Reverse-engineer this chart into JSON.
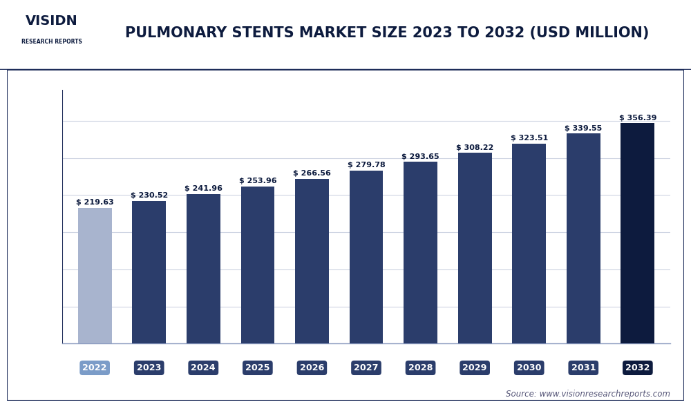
{
  "title": "PULMONARY STENTS MARKET SIZE 2023 TO 2032 (USD MILLION)",
  "categories": [
    "2022",
    "2023",
    "2024",
    "2025",
    "2026",
    "2027",
    "2028",
    "2029",
    "2030",
    "2031",
    "2032"
  ],
  "values": [
    219.63,
    230.52,
    241.96,
    253.96,
    266.56,
    279.78,
    293.65,
    308.22,
    323.51,
    339.55,
    356.39
  ],
  "bar_colors": [
    "#a8b4ce",
    "#2b3d6b",
    "#2b3d6b",
    "#2b3d6b",
    "#2b3d6b",
    "#2b3d6b",
    "#2b3d6b",
    "#2b3d6b",
    "#2b3d6b",
    "#2b3d6b",
    "#0d1b3e"
  ],
  "tick_label_bg_colors": [
    "#7b9cc8",
    "#2b3d6b",
    "#2b3d6b",
    "#2b3d6b",
    "#2b3d6b",
    "#2b3d6b",
    "#2b3d6b",
    "#2b3d6b",
    "#2b3d6b",
    "#2b3d6b",
    "#0d1b3e"
  ],
  "value_labels": [
    "$ 219.63",
    "$ 230.52",
    "$ 241.96",
    "$ 253.96",
    "$ 266.56",
    "$ 279.78",
    "$ 293.65",
    "$ 308.22",
    "$ 323.51",
    "$ 339.55",
    "$ 356.39"
  ],
  "ylim": [
    0,
    410
  ],
  "background_color": "#ffffff",
  "plot_bg_color": "#ffffff",
  "grid_color": "#ced4e2",
  "title_color": "#0d1b3e",
  "source_text": "Source: www.visionresearchreports.com",
  "header_bg_color": "#edf0f7",
  "border_color": "#1e2d5a",
  "outer_border_color": "#1e2d5a"
}
